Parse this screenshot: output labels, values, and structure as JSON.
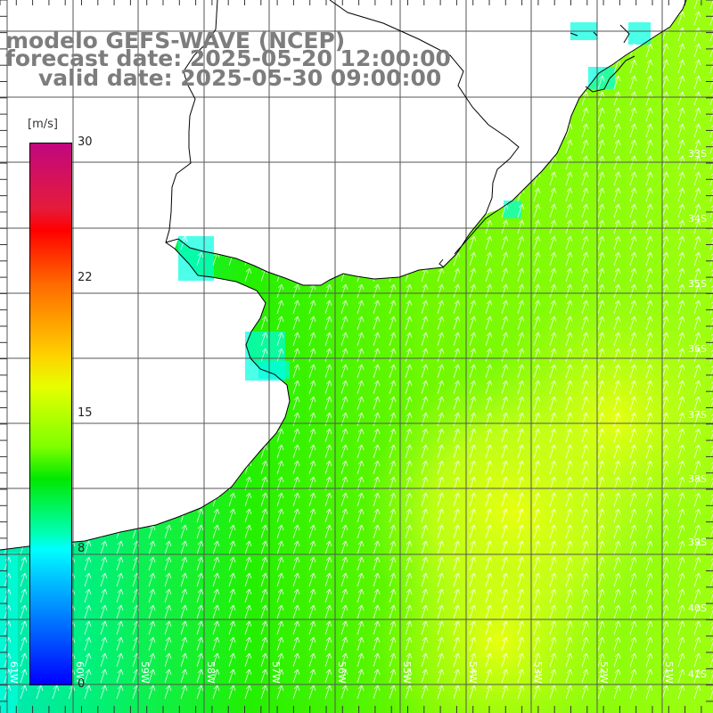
{
  "title": {
    "line1": "modelo GEFS-WAVE (NCEP)",
    "line2": "forecast date: 2025-05-20 12:00:00",
    "line3": "valid date: 2025-05-30 09:00:00"
  },
  "colorbar": {
    "unit": "[m/s]",
    "ticks": [
      "30",
      "22",
      "15",
      "8",
      "0"
    ],
    "tick_values": [
      30,
      22,
      15,
      8,
      0
    ],
    "colors": [
      "#c1077e",
      "#ff0000",
      "#ff6a00",
      "#ffd000",
      "#7fff00",
      "#00e800",
      "#00ffff",
      "#0000ff"
    ]
  },
  "lat_labels": [
    "33S",
    "34S",
    "35S",
    "36S",
    "37S",
    "38S",
    "39S",
    "40S",
    "41S"
  ],
  "lon_labels": [
    "61W",
    "60W",
    "59W",
    "58W",
    "57W",
    "56W",
    "55W",
    "54W",
    "53W",
    "52W",
    "51W"
  ],
  "map": {
    "field": "wind speed",
    "arrow_direction": "toward north-northeast",
    "land_color": "#ffffff",
    "grid_color": "#555555",
    "coast_color": "#000000"
  }
}
